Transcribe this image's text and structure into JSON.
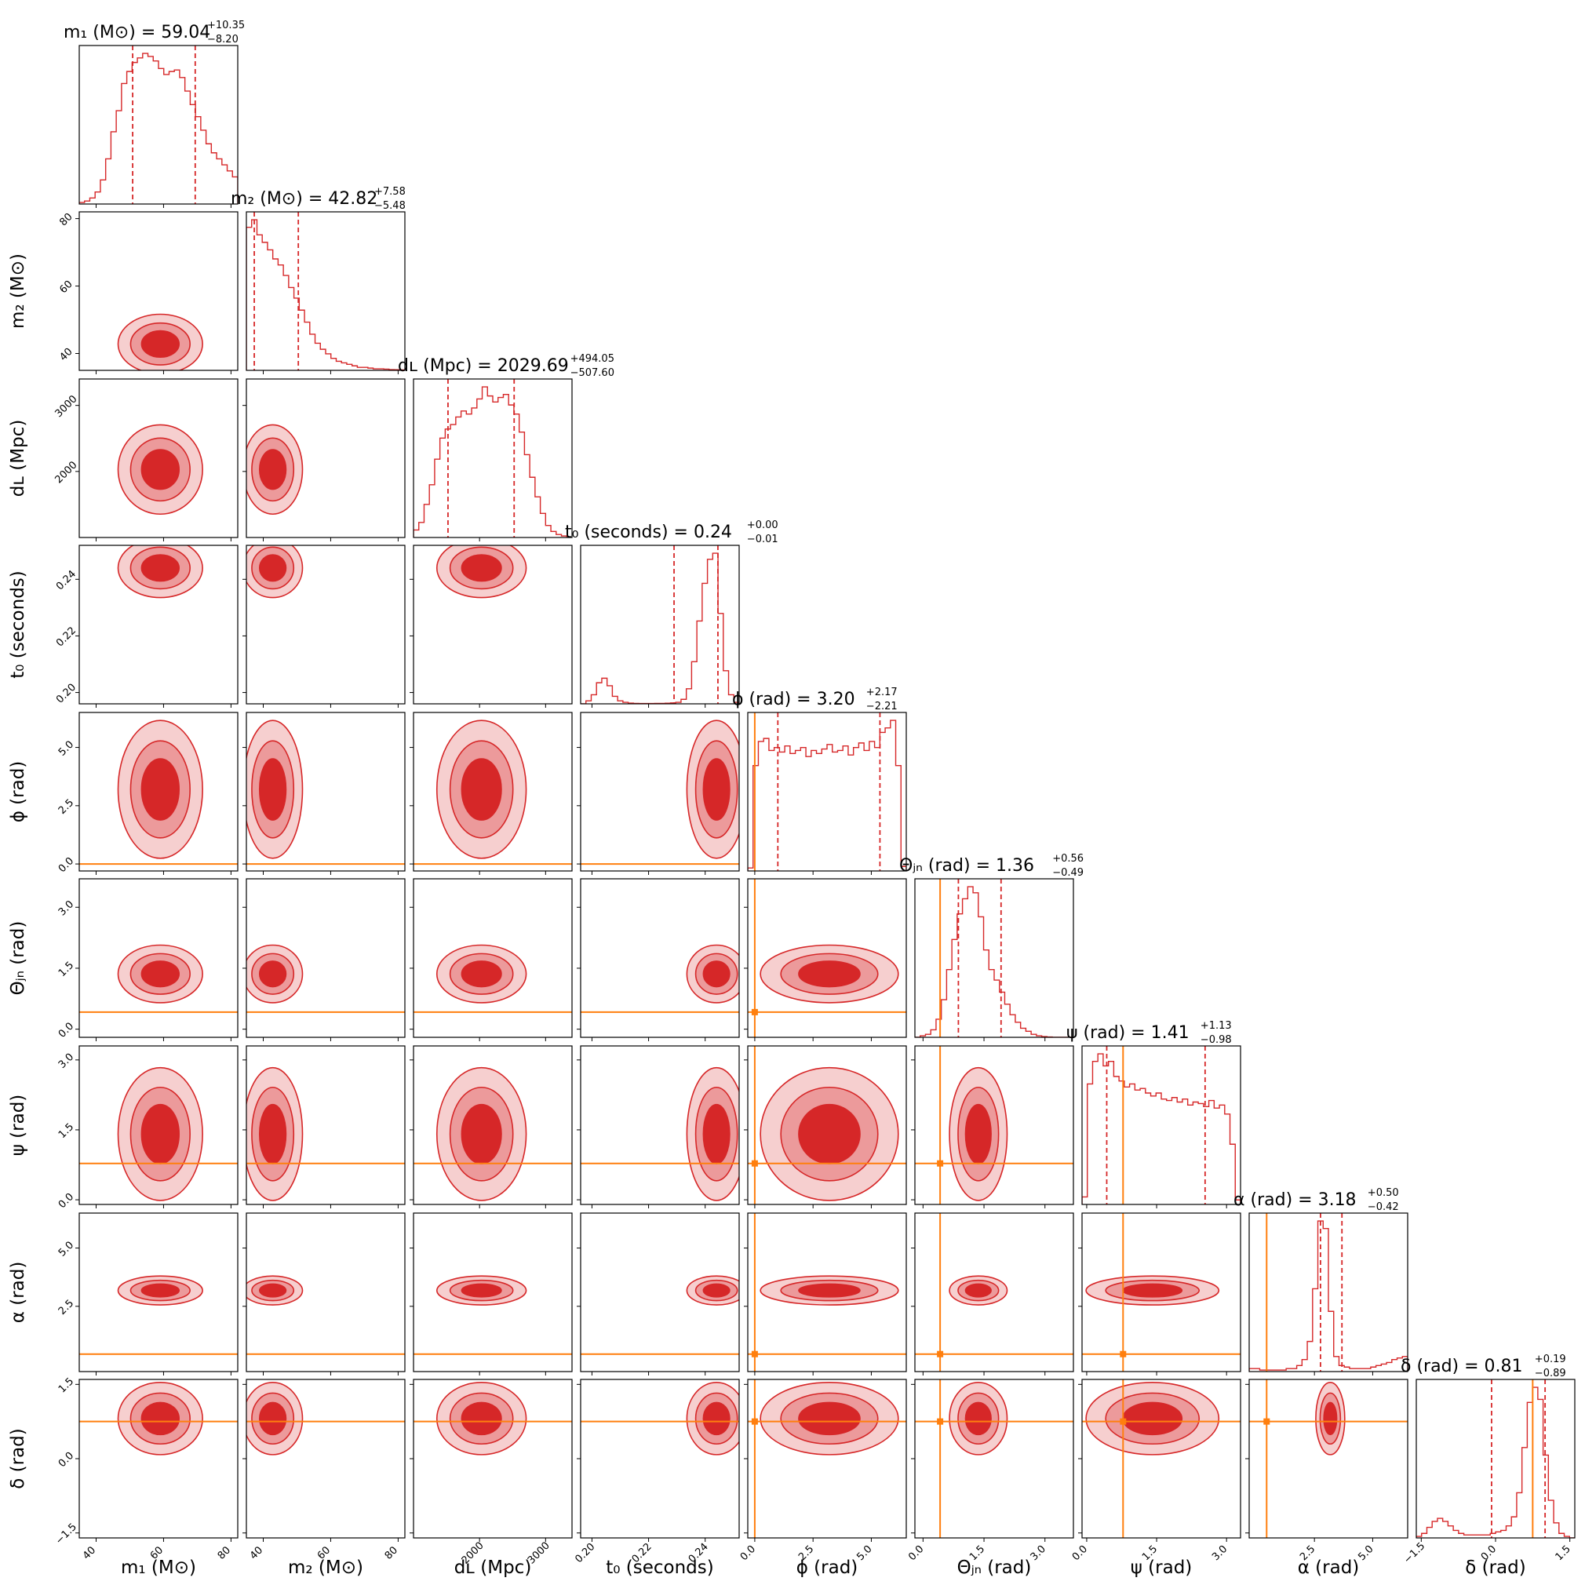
{
  "colors": {
    "contour_dark": "#d62728",
    "contour_light": "#ec9a9b",
    "contour_lighter": "#f6cfcf",
    "line": "#d62728",
    "truth": "#ff7f0e"
  },
  "chart_data": {
    "type": "corner",
    "parameters": [
      {
        "id": "m1",
        "title": "m₁ (M⊙) = 59.04",
        "err_plus": "+10.35",
        "err_minus": "−8.20",
        "axis_label": "m₁ (M⊙)",
        "range": [
          35,
          82
        ],
        "ticks": [
          40,
          60,
          80
        ],
        "tick_labels": [
          "40",
          "60",
          "80"
        ],
        "median": 59.04,
        "q_lo": 50.84,
        "q_hi": 69.39,
        "truth": null,
        "hist": [
          0.01,
          0.02,
          0.04,
          0.08,
          0.16,
          0.3,
          0.48,
          0.62,
          0.8,
          0.88,
          0.94,
          0.97,
          1.0,
          0.98,
          0.95,
          0.9,
          0.86,
          0.88,
          0.89,
          0.84,
          0.75,
          0.66,
          0.58,
          0.49,
          0.4,
          0.34,
          0.3,
          0.26,
          0.22,
          0.18
        ]
      },
      {
        "id": "m2",
        "title": "m₂ (M⊙) = 42.82",
        "err_plus": "+7.58",
        "err_minus": "−5.48",
        "axis_label": "m₂ (M⊙)",
        "range": [
          35,
          82
        ],
        "ticks": [
          40,
          60,
          80
        ],
        "tick_labels": [
          "40",
          "60",
          "80"
        ],
        "median": 42.82,
        "q_lo": 37.34,
        "q_hi": 50.4,
        "truth": null,
        "hist": [
          0.95,
          1.0,
          0.9,
          0.85,
          0.8,
          0.74,
          0.7,
          0.63,
          0.55,
          0.48,
          0.4,
          0.32,
          0.24,
          0.18,
          0.14,
          0.11,
          0.08,
          0.06,
          0.05,
          0.04,
          0.03,
          0.02,
          0.02,
          0.015,
          0.01,
          0.01,
          0.008,
          0.005,
          0.004,
          0.003
        ]
      },
      {
        "id": "dL",
        "title": "dʟ (Mpc) = 2029.69",
        "err_plus": "+494.05",
        "err_minus": "−507.60",
        "axis_label": "dʟ (Mpc)",
        "range": [
          1000,
          3400
        ],
        "ticks": [
          2000,
          3000
        ],
        "tick_labels": [
          "2000",
          "3000"
        ],
        "median": 2029.69,
        "q_lo": 1522.09,
        "q_hi": 2523.74,
        "truth": null,
        "hist": [
          0.05,
          0.1,
          0.22,
          0.35,
          0.52,
          0.66,
          0.72,
          0.75,
          0.8,
          0.84,
          0.82,
          0.86,
          0.92,
          1.0,
          0.94,
          0.9,
          0.93,
          0.95,
          0.88,
          0.82,
          0.7,
          0.55,
          0.4,
          0.27,
          0.16,
          0.08,
          0.04,
          0.02,
          0.01,
          0.0
        ]
      },
      {
        "id": "t0",
        "title": "t₀ (seconds) = 0.24",
        "err_plus": "+0.00",
        "err_minus": "−0.01",
        "axis_label": "t₀ (seconds)",
        "range": [
          0.196,
          0.252
        ],
        "ticks": [
          0.2,
          0.22,
          0.24
        ],
        "tick_labels": [
          "0.20",
          "0.22",
          "0.24"
        ],
        "median": 0.244,
        "q_lo": 0.229,
        "q_hi": 0.2445,
        "truth": null,
        "hist": [
          0.0,
          0.02,
          0.06,
          0.14,
          0.17,
          0.12,
          0.05,
          0.02,
          0.01,
          0.005,
          0.003,
          0.002,
          0.002,
          0.002,
          0.003,
          0.003,
          0.004,
          0.006,
          0.01,
          0.03,
          0.1,
          0.28,
          0.55,
          0.8,
          0.96,
          1.0,
          0.6,
          0.22,
          0.06,
          0.01
        ]
      },
      {
        "id": "phi",
        "title": "ϕ (rad) = 3.20",
        "err_plus": "+2.17",
        "err_minus": "−2.21",
        "axis_label": "ϕ (rad)",
        "range": [
          -0.3,
          6.5
        ],
        "ticks": [
          0.0,
          2.5,
          5.0
        ],
        "tick_labels": [
          "0.0",
          "2.5",
          "5.0"
        ],
        "median": 3.2,
        "q_lo": 0.99,
        "q_hi": 5.37,
        "truth": 0.0,
        "hist": [
          0.02,
          0.7,
          0.86,
          0.88,
          0.8,
          0.82,
          0.79,
          0.83,
          0.78,
          0.8,
          0.82,
          0.76,
          0.8,
          0.78,
          0.81,
          0.84,
          0.79,
          0.8,
          0.83,
          0.77,
          0.82,
          0.85,
          0.8,
          0.86,
          0.82,
          0.92,
          0.95,
          1.0,
          0.7,
          0.03
        ]
      },
      {
        "id": "thetajn",
        "title": "Θⱼₙ (rad) = 1.36",
        "err_plus": "+0.56",
        "err_minus": "−0.49",
        "axis_label": "Θⱼₙ (rad)",
        "range": [
          -0.2,
          3.7
        ],
        "ticks": [
          0.0,
          1.5,
          3.0
        ],
        "tick_labels": [
          "0.0",
          "1.5",
          "3.0"
        ],
        "median": 1.36,
        "q_lo": 0.87,
        "q_hi": 1.92,
        "truth": 0.42,
        "hist": [
          0.0,
          0.01,
          0.02,
          0.05,
          0.12,
          0.25,
          0.45,
          0.65,
          0.82,
          0.92,
          1.0,
          0.96,
          0.8,
          0.58,
          0.45,
          0.38,
          0.3,
          0.22,
          0.15,
          0.1,
          0.06,
          0.04,
          0.02,
          0.01,
          0.005,
          0.002,
          0.0,
          0.0,
          0.0,
          0.0
        ]
      },
      {
        "id": "psi",
        "title": "ψ (rad) = 1.41",
        "err_plus": "+1.13",
        "err_minus": "−0.98",
        "axis_label": "ψ (rad)",
        "range": [
          -0.1,
          3.3
        ],
        "ticks": [
          0.0,
          1.5,
          3.0
        ],
        "tick_labels": [
          "0.0",
          "1.5",
          "3.0"
        ],
        "median": 1.41,
        "q_lo": 0.43,
        "q_hi": 2.54,
        "truth": 0.78,
        "hist": [
          0.05,
          0.8,
          0.95,
          1.0,
          0.92,
          0.95,
          0.85,
          0.82,
          0.78,
          0.8,
          0.76,
          0.77,
          0.74,
          0.72,
          0.74,
          0.7,
          0.69,
          0.71,
          0.68,
          0.7,
          0.66,
          0.68,
          0.67,
          0.65,
          0.69,
          0.64,
          0.66,
          0.6,
          0.4,
          0.03
        ]
      },
      {
        "id": "alpha",
        "title": "α (rad) = 3.18",
        "err_plus": "+0.50",
        "err_minus": "−0.42",
        "axis_label": "α (rad)",
        "range": [
          -0.3,
          6.5
        ],
        "ticks": [
          2.5,
          5.0
        ],
        "tick_labels": [
          "2.5",
          "5.0"
        ],
        "median": 3.18,
        "q_lo": 2.76,
        "q_hi": 3.68,
        "truth": 0.45,
        "hist": [
          0.02,
          0.02,
          0.01,
          0.01,
          0.01,
          0.01,
          0.01,
          0.02,
          0.02,
          0.04,
          0.08,
          0.2,
          0.55,
          1.0,
          0.95,
          0.4,
          0.1,
          0.04,
          0.03,
          0.02,
          0.02,
          0.02,
          0.02,
          0.03,
          0.04,
          0.05,
          0.06,
          0.08,
          0.09,
          0.1
        ]
      },
      {
        "id": "delta",
        "title": "δ (rad) = 0.81",
        "err_plus": "+0.19",
        "err_minus": "−0.89",
        "axis_label": "δ (rad)",
        "range": [
          -1.6,
          1.6
        ],
        "ticks": [
          -1.5,
          0.0,
          1.5
        ],
        "tick_labels": [
          "−1.5",
          "0.0",
          "1.5"
        ],
        "median": 0.81,
        "q_lo": -0.08,
        "q_hi": 1.0,
        "truth": 0.75,
        "hist": [
          0.01,
          0.03,
          0.07,
          0.11,
          0.13,
          0.11,
          0.08,
          0.05,
          0.03,
          0.02,
          0.02,
          0.02,
          0.02,
          0.02,
          0.03,
          0.04,
          0.05,
          0.08,
          0.14,
          0.3,
          0.6,
          0.9,
          1.0,
          0.92,
          0.55,
          0.25,
          0.1,
          0.03,
          0.01,
          0.0
        ]
      }
    ]
  }
}
